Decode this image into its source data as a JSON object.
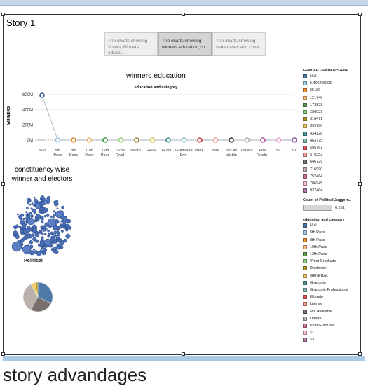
{
  "story": {
    "title": "Story 1"
  },
  "tabs": [
    {
      "label": "The charts showing Voters,Winners educa..",
      "active": false
    },
    {
      "label": "The charts showing winners education,co..",
      "active": true
    },
    {
      "label": "The charts showing state cases and comt..",
      "active": false
    }
  ],
  "chart": {
    "title": "winners education",
    "subtitle": "education and category",
    "ylabel": "WINNERS"
  },
  "chart_data": {
    "type": "line",
    "title": "winners education",
    "xlabel": "education and category",
    "ylabel": "WINNERS",
    "ylim": [
      0,
      600000000
    ],
    "yticks": [
      "0M",
      "200M",
      "400M",
      "600M"
    ],
    "categories": [
      "Null",
      "5th Pass",
      "8th Pass",
      "10th Pass",
      "12th Pass",
      "*Post Grad..",
      "Docto..",
      "GENE..",
      "Gradu..",
      "Gradua te Pro..",
      "Illiter..",
      "Litera..",
      "Not Av ailable",
      "Others",
      "Post Gradu..",
      "SC",
      "ST"
    ],
    "values": [
      590000000,
      0,
      0,
      0,
      0,
      0,
      0,
      0,
      0,
      0,
      0,
      0,
      0,
      0,
      0,
      0,
      0
    ],
    "colors": [
      "#3b5f9a",
      "#9fc6e6",
      "#e3882a",
      "#f2b36a",
      "#3c9a3c",
      "#8fd16f",
      "#8a7a2a",
      "#d8c74a",
      "#3b8f8a",
      "#83c7c1",
      "#c93b3b",
      "#f29a9a",
      "#333333",
      "#aaaaaa",
      "#c0509a",
      "#f1a3cd",
      "#8e4e9e"
    ],
    "grid": true
  },
  "constituency": {
    "title": "constituency wise winner and electors",
    "bubble_label": "Political"
  },
  "legend": {
    "gender_title": "GENDER GENDER *GENE..",
    "gender_items": [
      {
        "label": "Null",
        "color": "#4e79a7"
      },
      {
        "label": "5.40648822E",
        "color": "#a0cbe8"
      },
      {
        "label": "55189",
        "color": "#f28e2b"
      },
      {
        "label": "121740",
        "color": "#ffbe7d"
      },
      {
        "label": "179232",
        "color": "#59a14f"
      },
      {
        "label": "250039",
        "color": "#8cd17d"
      },
      {
        "label": "316471",
        "color": "#b6992d"
      },
      {
        "label": "399780",
        "color": "#f1ce63"
      },
      {
        "label": "434128",
        "color": "#499894"
      },
      {
        "label": "463775",
        "color": "#86bcb6"
      },
      {
        "label": "556761",
        "color": "#e15759"
      },
      {
        "label": "579352",
        "color": "#ff9d9a"
      },
      {
        "label": "646729",
        "color": "#79706e"
      },
      {
        "label": "716990",
        "color": "#bab0ac"
      },
      {
        "label": "752464",
        "color": "#d37295"
      },
      {
        "label": "786945",
        "color": "#fabfd2"
      },
      {
        "label": "937464",
        "color": "#b07aa1"
      }
    ],
    "size_title": "Count of Political Juggern..",
    "size_value": "6,251",
    "edu_title": "education and category",
    "edu_items": [
      {
        "label": "Null",
        "color": "#4e79a7"
      },
      {
        "label": "5th Pass",
        "color": "#a0cbe8"
      },
      {
        "label": "8th Pass",
        "color": "#f28e2b"
      },
      {
        "label": "10th Pass",
        "color": "#ffbe7d"
      },
      {
        "label": "12th Pass",
        "color": "#59a14f"
      },
      {
        "label": "*Post Graduate",
        "color": "#8cd17d"
      },
      {
        "label": "Doctorate",
        "color": "#b6992d"
      },
      {
        "label": "GENERAL",
        "color": "#f1ce63"
      },
      {
        "label": "Graduate",
        "color": "#499894"
      },
      {
        "label": "Graduate Professional",
        "color": "#86bcb6"
      },
      {
        "label": "Illiterate",
        "color": "#e15759"
      },
      {
        "label": "Literate",
        "color": "#ff9d9a"
      },
      {
        "label": "Not Available",
        "color": "#79706e"
      },
      {
        "label": "Others",
        "color": "#bab0ac"
      },
      {
        "label": "Post Graduate",
        "color": "#d37295"
      },
      {
        "label": "SC",
        "color": "#fabfd2"
      },
      {
        "label": "ST",
        "color": "#b07aa1"
      }
    ]
  },
  "pie": {
    "colors": [
      "#4e79a7",
      "#79706e",
      "#bab0ac",
      "#f1ce63",
      "#b6992d"
    ]
  },
  "footer": {
    "text": "story  advandages"
  }
}
